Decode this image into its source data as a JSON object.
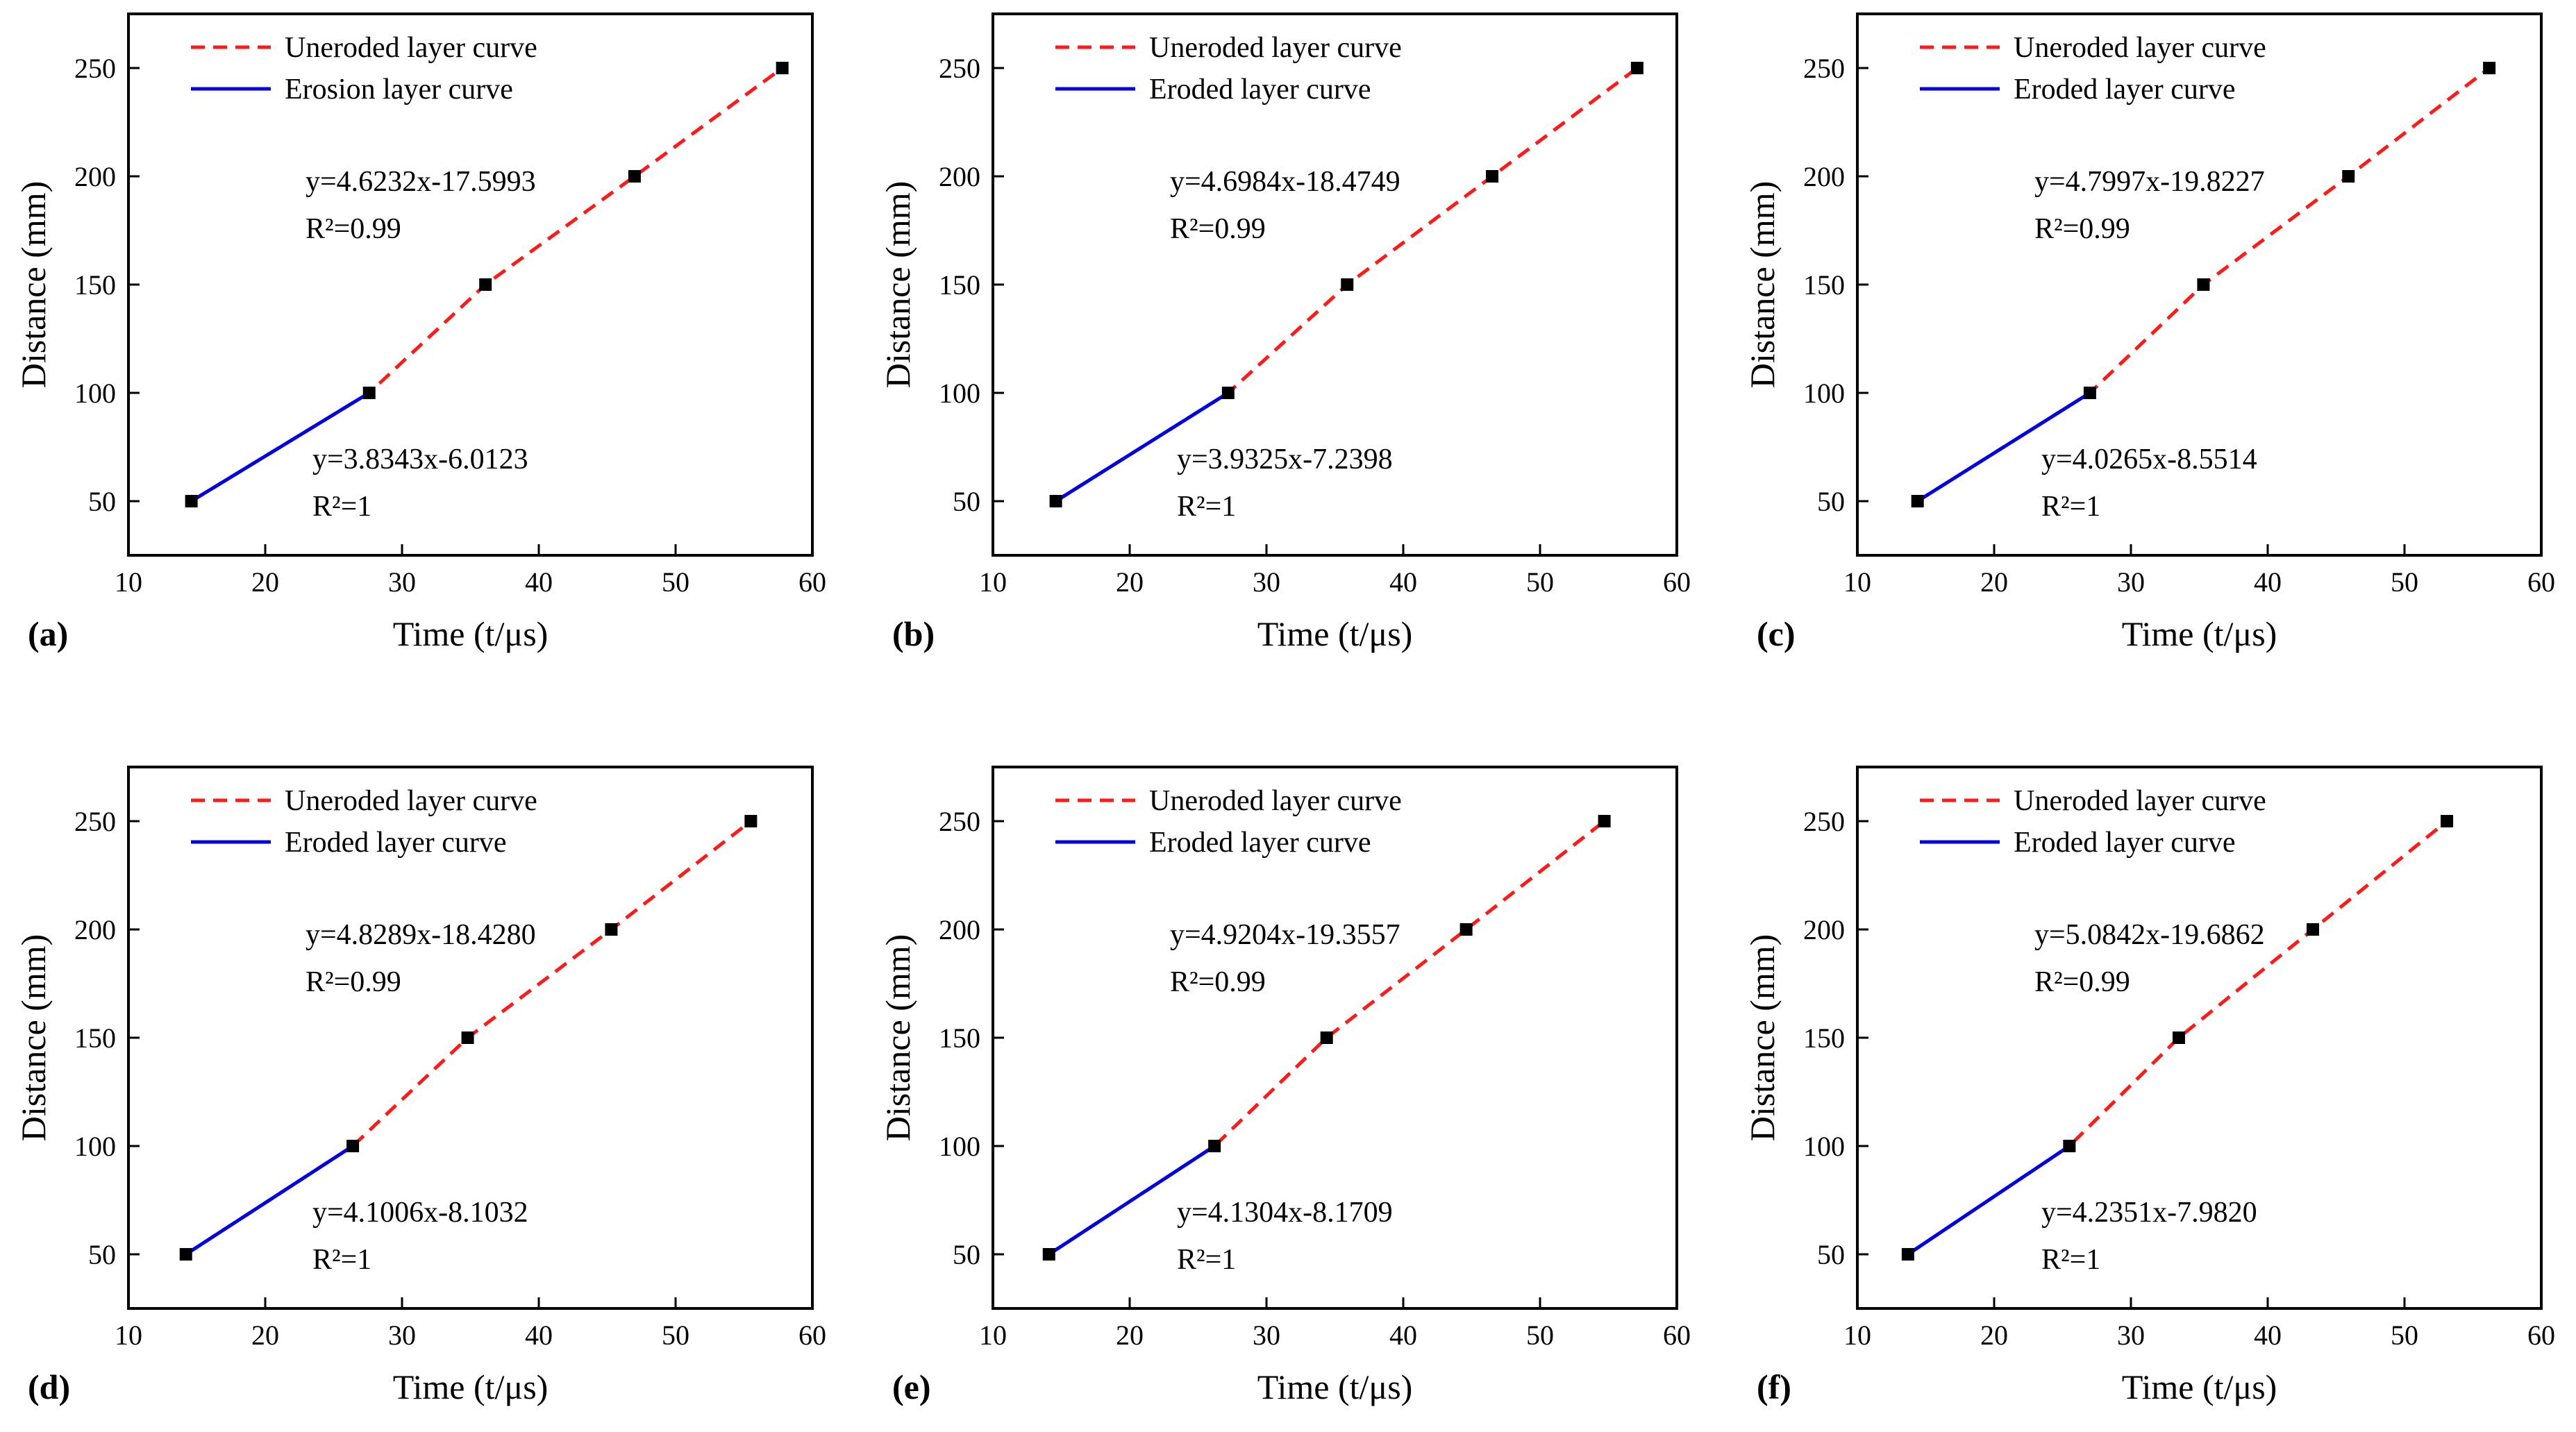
{
  "colors": {
    "uneroded": "#ff1a1a",
    "eroded": "#0000e6",
    "marker": "#000000",
    "axis": "#000000"
  },
  "chart_data": [
    {
      "type": "line",
      "panel_label": "(a)",
      "xlabel": "Time (t/μs)",
      "ylabel": "Distance (mm)",
      "xlim": [
        10,
        60
      ],
      "ylim": [
        25,
        275
      ],
      "xticks": [
        "10",
        "20",
        "30",
        "40",
        "50",
        "60"
      ],
      "yticks": [
        "50",
        "100",
        "150",
        "200",
        "250"
      ],
      "legend": [
        "Uneroded layer curve",
        "Erosion layer curve"
      ],
      "series": [
        {
          "name": "Uneroded layer curve",
          "style": "dashed",
          "x": [
            14.6,
            27.6,
            36.1,
            47.0,
            57.8
          ],
          "y": [
            50,
            100,
            150,
            200,
            250
          ]
        },
        {
          "name": "Erosion layer curve",
          "style": "solid",
          "x": [
            14.6,
            27.6
          ],
          "y": [
            50,
            100
          ]
        }
      ],
      "annotations": [
        {
          "line1": "y=4.6232x-17.5993",
          "r2": "R²=0.99"
        },
        {
          "line1": "y=3.8343x-6.0123",
          "r2": "R²=1"
        }
      ]
    },
    {
      "type": "line",
      "panel_label": "(b)",
      "xlabel": "Time (t/μs)",
      "ylabel": "Distance (mm)",
      "xlim": [
        10,
        60
      ],
      "ylim": [
        25,
        275
      ],
      "xticks": [
        "10",
        "20",
        "30",
        "40",
        "50",
        "60"
      ],
      "yticks": [
        "50",
        "100",
        "150",
        "200",
        "250"
      ],
      "legend": [
        "Uneroded layer curve",
        "Eroded layer curve"
      ],
      "series": [
        {
          "name": "Uneroded layer curve",
          "style": "dashed",
          "x": [
            14.6,
            27.2,
            35.9,
            46.5,
            57.1
          ],
          "y": [
            50,
            100,
            150,
            200,
            250
          ]
        },
        {
          "name": "Eroded layer curve",
          "style": "solid",
          "x": [
            14.6,
            27.2
          ],
          "y": [
            50,
            100
          ]
        }
      ],
      "annotations": [
        {
          "line1": "y=4.6984x-18.4749",
          "r2": "R²=0.99"
        },
        {
          "line1": "y=3.9325x-7.2398",
          "r2": "R²=1"
        }
      ]
    },
    {
      "type": "line",
      "panel_label": "(c)",
      "xlabel": "Time (t/μs)",
      "ylabel": "Distance (mm)",
      "xlim": [
        10,
        60
      ],
      "ylim": [
        25,
        275
      ],
      "xticks": [
        "10",
        "20",
        "30",
        "40",
        "50",
        "60"
      ],
      "yticks": [
        "50",
        "100",
        "150",
        "200",
        "250"
      ],
      "legend": [
        "Uneroded layer curve",
        "Eroded layer curve"
      ],
      "series": [
        {
          "name": "Uneroded layer curve",
          "style": "dashed",
          "x": [
            14.4,
            27.0,
            35.3,
            45.9,
            56.2
          ],
          "y": [
            50,
            100,
            150,
            200,
            250
          ]
        },
        {
          "name": "Eroded layer curve",
          "style": "solid",
          "x": [
            14.4,
            27.0
          ],
          "y": [
            50,
            100
          ]
        }
      ],
      "annotations": [
        {
          "line1": "y=4.7997x-19.8227",
          "r2": "R²=0.99"
        },
        {
          "line1": "y=4.0265x-8.5514",
          "r2": "R²=1"
        }
      ]
    },
    {
      "type": "line",
      "panel_label": "(d)",
      "xlabel": "Time (t/μs)",
      "ylabel": "Distance (mm)",
      "xlim": [
        10,
        60
      ],
      "ylim": [
        25,
        275
      ],
      "xticks": [
        "10",
        "20",
        "30",
        "40",
        "50",
        "60"
      ],
      "yticks": [
        "50",
        "100",
        "150",
        "200",
        "250"
      ],
      "legend": [
        "Uneroded layer curve",
        "Eroded layer curve"
      ],
      "series": [
        {
          "name": "Uneroded layer curve",
          "style": "dashed",
          "x": [
            14.2,
            26.4,
            34.8,
            45.3,
            55.5
          ],
          "y": [
            50,
            100,
            150,
            200,
            250
          ]
        },
        {
          "name": "Eroded layer curve",
          "style": "solid",
          "x": [
            14.2,
            26.4
          ],
          "y": [
            50,
            100
          ]
        }
      ],
      "annotations": [
        {
          "line1": "y=4.8289x-18.4280",
          "r2": "R²=0.99"
        },
        {
          "line1": "y=4.1006x-8.1032",
          "r2": "R²=1"
        }
      ]
    },
    {
      "type": "line",
      "panel_label": "(e)",
      "xlabel": "Time (t/μs)",
      "ylabel": "Distance (mm)",
      "xlim": [
        10,
        60
      ],
      "ylim": [
        25,
        275
      ],
      "xticks": [
        "10",
        "20",
        "30",
        "40",
        "50",
        "60"
      ],
      "yticks": [
        "50",
        "100",
        "150",
        "200",
        "250"
      ],
      "legend": [
        "Uneroded layer curve",
        "Eroded layer curve"
      ],
      "series": [
        {
          "name": "Uneroded layer curve",
          "style": "dashed",
          "x": [
            14.1,
            26.2,
            34.4,
            44.6,
            54.7
          ],
          "y": [
            50,
            100,
            150,
            200,
            250
          ]
        },
        {
          "name": "Eroded layer curve",
          "style": "solid",
          "x": [
            14.1,
            26.2
          ],
          "y": [
            50,
            100
          ]
        }
      ],
      "annotations": [
        {
          "line1": "y=4.9204x-19.3557",
          "r2": "R²=0.99"
        },
        {
          "line1": "y=4.1304x-8.1709",
          "r2": "R²=1"
        }
      ]
    },
    {
      "type": "line",
      "panel_label": "(f)",
      "xlabel": "Time (t/μs)",
      "ylabel": "Distance (mm)",
      "xlim": [
        10,
        60
      ],
      "ylim": [
        25,
        275
      ],
      "xticks": [
        "10",
        "20",
        "30",
        "40",
        "50",
        "60"
      ],
      "yticks": [
        "50",
        "100",
        "150",
        "200",
        "250"
      ],
      "legend": [
        "Uneroded layer curve",
        "Eroded layer curve"
      ],
      "series": [
        {
          "name": "Uneroded layer curve",
          "style": "dashed",
          "x": [
            13.7,
            25.5,
            33.5,
            43.3,
            53.1
          ],
          "y": [
            50,
            100,
            150,
            200,
            250
          ]
        },
        {
          "name": "Eroded layer curve",
          "style": "solid",
          "x": [
            13.7,
            25.5
          ],
          "y": [
            50,
            100
          ]
        }
      ],
      "annotations": [
        {
          "line1": "y=5.0842x-19.6862",
          "r2": "R²=0.99"
        },
        {
          "line1": "y=4.2351x-7.9820",
          "r2": "R²=1"
        }
      ]
    }
  ]
}
